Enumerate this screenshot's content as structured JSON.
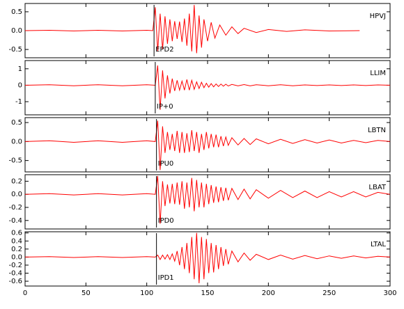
{
  "chart_data": [
    {
      "type": "line",
      "title": "HPVJ",
      "annotation": "EPD2",
      "pick_x": 106,
      "color": "#ff0000",
      "xlim": [
        0,
        300
      ],
      "ylim": [
        -0.72,
        0.72
      ],
      "yticks": [
        0.5,
        {
          "value": 0,
          "label": "0.0"
        },
        -0.5
      ],
      "x": [
        0,
        20,
        40,
        60,
        80,
        100,
        105,
        107,
        109,
        111,
        113,
        115,
        117,
        119,
        121,
        123,
        125,
        127,
        129,
        131,
        133,
        135,
        137,
        139,
        141,
        143,
        145,
        147,
        150,
        153,
        156,
        160,
        165,
        170,
        175,
        180,
        190,
        200,
        215,
        230,
        250,
        275
      ],
      "values": [
        0,
        0.01,
        -0.01,
        0.01,
        -0.01,
        0.01,
        0,
        0.62,
        -0.55,
        0.45,
        -0.5,
        0.38,
        -0.35,
        0.3,
        -0.28,
        0.25,
        -0.22,
        0.24,
        -0.3,
        0.32,
        -0.4,
        0.45,
        -0.55,
        0.68,
        -0.6,
        0.4,
        -0.45,
        0.3,
        -0.28,
        0.22,
        -0.2,
        0.15,
        -0.12,
        0.1,
        -0.08,
        0.06,
        -0.05,
        0.03,
        -0.02,
        0.02,
        -0.01,
        0
      ]
    },
    {
      "type": "line",
      "title": "LLIM",
      "annotation": "IP+0",
      "pick_x": 107,
      "color": "#ff0000",
      "xlim": [
        0,
        300
      ],
      "ylim": [
        -1.8,
        1.5
      ],
      "yticks": [
        1,
        0,
        -1
      ],
      "x": [
        0,
        20,
        40,
        60,
        80,
        100,
        107,
        109,
        111,
        113,
        115,
        117,
        119,
        121,
        123,
        125,
        127,
        129,
        131,
        133,
        135,
        137,
        139,
        141,
        143,
        145,
        147,
        149,
        151,
        153,
        155,
        157,
        159,
        161,
        163,
        165,
        167,
        170,
        175,
        180,
        185,
        190,
        200,
        210,
        220,
        230,
        240,
        250,
        260,
        270,
        280,
        290,
        300
      ],
      "values": [
        0,
        0.03,
        -0.03,
        0.03,
        -0.03,
        0.03,
        0,
        1.2,
        -1.5,
        0.9,
        -0.8,
        0.6,
        -0.5,
        0.4,
        -0.35,
        0.3,
        -0.3,
        0.25,
        -0.3,
        0.35,
        -0.3,
        0.3,
        -0.25,
        0.2,
        -0.2,
        0.18,
        -0.15,
        0.12,
        -0.12,
        0.1,
        -0.1,
        0.08,
        -0.08,
        0.07,
        -0.06,
        0.06,
        -0.05,
        0.05,
        -0.04,
        0.04,
        -0.04,
        0.03,
        -0.03,
        0.03,
        -0.03,
        0.02,
        -0.02,
        0.02,
        -0.02,
        0.02,
        -0.02,
        0.02,
        0
      ]
    },
    {
      "type": "line",
      "title": "LBTN",
      "annotation": "IPU0",
      "pick_x": 108,
      "color": "#ff0000",
      "xlim": [
        0,
        300
      ],
      "ylim": [
        -0.8,
        0.63
      ],
      "yticks": [
        0.5,
        {
          "value": 0,
          "label": "0.0"
        },
        -0.5
      ],
      "x": [
        0,
        20,
        40,
        60,
        80,
        100,
        107,
        109,
        111,
        113,
        115,
        117,
        119,
        121,
        123,
        125,
        127,
        129,
        131,
        133,
        135,
        137,
        139,
        141,
        143,
        145,
        147,
        149,
        151,
        153,
        155,
        157,
        159,
        161,
        163,
        165,
        167,
        170,
        175,
        180,
        185,
        190,
        200,
        210,
        220,
        230,
        240,
        250,
        260,
        270,
        280,
        290,
        300
      ],
      "values": [
        0,
        0.02,
        -0.02,
        0.02,
        -0.02,
        0.02,
        0,
        0.55,
        -0.75,
        0.4,
        -0.3,
        0.25,
        -0.22,
        0.2,
        -0.25,
        0.28,
        -0.3,
        0.25,
        -0.3,
        0.22,
        -0.28,
        0.3,
        -0.25,
        0.25,
        -0.3,
        0.2,
        -0.22,
        0.25,
        -0.18,
        0.2,
        -0.15,
        0.18,
        -0.15,
        0.14,
        -0.12,
        0.12,
        -0.1,
        0.1,
        -0.09,
        0.08,
        -0.08,
        0.07,
        -0.06,
        0.06,
        -0.05,
        0.05,
        -0.04,
        0.04,
        -0.04,
        0.03,
        -0.03,
        0.03,
        0
      ]
    },
    {
      "type": "line",
      "title": "LBAT",
      "annotation": "IPD0",
      "pick_x": 108,
      "color": "#ff0000",
      "xlim": [
        0,
        300
      ],
      "ylim": [
        -0.53,
        0.3
      ],
      "yticks": [
        0.2,
        {
          "value": 0,
          "label": "0.0"
        },
        -0.2,
        -0.4
      ],
      "x": [
        0,
        20,
        40,
        60,
        80,
        100,
        107,
        109,
        111,
        113,
        115,
        117,
        119,
        121,
        123,
        125,
        127,
        129,
        131,
        133,
        135,
        137,
        139,
        141,
        143,
        145,
        147,
        149,
        151,
        153,
        155,
        157,
        159,
        161,
        163,
        165,
        167,
        170,
        175,
        180,
        185,
        190,
        200,
        210,
        220,
        230,
        240,
        250,
        260,
        270,
        280,
        290,
        300
      ],
      "values": [
        0,
        0.01,
        -0.01,
        0.01,
        -0.01,
        0.01,
        0,
        0.28,
        -0.45,
        0.2,
        -0.18,
        0.15,
        -0.14,
        0.16,
        -0.15,
        0.18,
        -0.16,
        0.2,
        -0.22,
        0.18,
        -0.2,
        0.25,
        -0.26,
        0.22,
        -0.2,
        0.18,
        -0.2,
        0.16,
        -0.15,
        0.14,
        -0.13,
        0.12,
        -0.12,
        0.11,
        -0.1,
        0.1,
        -0.09,
        0.09,
        -0.08,
        0.08,
        -0.07,
        0.07,
        -0.06,
        0.06,
        -0.05,
        0.05,
        -0.05,
        0.04,
        -0.04,
        0.04,
        -0.04,
        0.03,
        0
      ]
    },
    {
      "type": "line",
      "title": "LTAL",
      "annotation": "IPD1",
      "pick_x": 108,
      "color": "#ff0000",
      "xlim": [
        0,
        300
      ],
      "ylim": [
        -0.72,
        0.63
      ],
      "yticks": [
        0.6,
        0.4,
        0.2,
        {
          "value": 0,
          "label": "0.0"
        },
        -0.2,
        -0.4,
        -0.6
      ],
      "xticks": [
        0,
        50,
        100,
        150,
        200,
        250,
        300
      ],
      "x": [
        0,
        20,
        40,
        60,
        80,
        100,
        107,
        109,
        111,
        113,
        115,
        117,
        119,
        121,
        123,
        125,
        127,
        129,
        131,
        133,
        135,
        137,
        139,
        141,
        143,
        145,
        147,
        149,
        151,
        153,
        155,
        157,
        159,
        161,
        163,
        165,
        167,
        170,
        175,
        180,
        185,
        190,
        200,
        210,
        220,
        230,
        240,
        250,
        260,
        270,
        280,
        290,
        300
      ],
      "values": [
        0,
        0.01,
        -0.01,
        0.01,
        -0.01,
        0.01,
        0,
        0.05,
        -0.06,
        0.05,
        -0.05,
        0.06,
        -0.06,
        0.08,
        -0.1,
        0.15,
        -0.2,
        0.25,
        -0.3,
        0.35,
        -0.4,
        0.5,
        -0.55,
        0.6,
        -0.65,
        0.5,
        -0.55,
        0.45,
        -0.4,
        0.35,
        -0.38,
        0.3,
        -0.3,
        0.25,
        -0.22,
        0.2,
        -0.18,
        0.15,
        -0.12,
        0.1,
        -0.08,
        0.07,
        -0.06,
        0.05,
        -0.05,
        0.04,
        -0.04,
        0.03,
        -0.03,
        0.03,
        -0.02,
        0.02,
        0
      ]
    }
  ]
}
